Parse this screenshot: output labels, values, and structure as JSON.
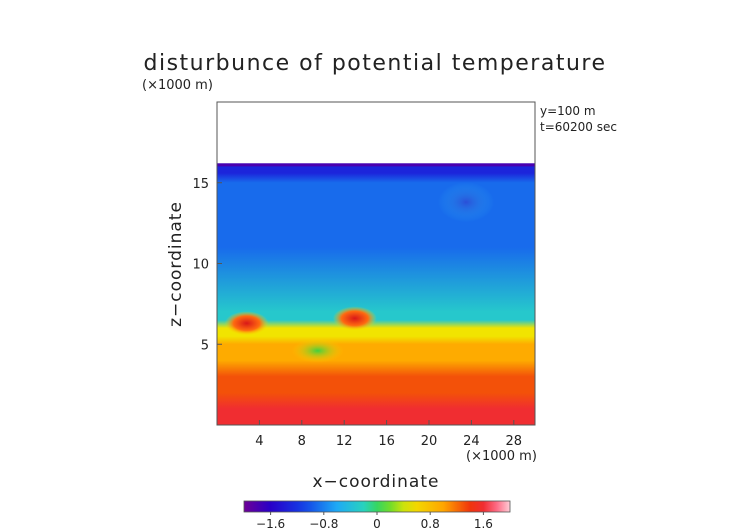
{
  "chart_data": {
    "type": "heatmap",
    "title": "disturbunce of potential temperature",
    "xlabel": "x−coordinate",
    "ylabel": "z−coordinate",
    "x_unit": "(×1000 m)",
    "y_unit": "(×1000 m)",
    "annotations": [
      "y=100  m",
      "t=60200 sec"
    ],
    "xlim": [
      0,
      30
    ],
    "ylim": [
      0,
      20
    ],
    "x_ticks": [
      4,
      8,
      12,
      16,
      20,
      24,
      28
    ],
    "y_ticks": [
      5,
      10,
      15
    ],
    "x_tick_labels": [
      "4",
      "8",
      "12",
      "16",
      "20",
      "24",
      "28"
    ],
    "y_tick_labels": [
      "5",
      "10",
      "15"
    ],
    "colorbar": {
      "min": -2.0,
      "max": 2.0,
      "ticks": [
        -1.6,
        -0.8,
        0,
        0.8,
        1.6
      ],
      "tick_labels": [
        "−1.6",
        "−0.8",
        "0",
        "0.8",
        "1.6"
      ]
    },
    "field_top_z": 16.2,
    "layers": [
      {
        "z_range": [
          0.0,
          1.0
        ],
        "value": 1.6
      },
      {
        "z_range": [
          1.0,
          3.0
        ],
        "value": 1.3
      },
      {
        "z_range": [
          3.0,
          5.0
        ],
        "value": 0.95
      },
      {
        "z_range": [
          5.0,
          6.0
        ],
        "value": 0.5
      },
      {
        "z_range": [
          6.0,
          7.0
        ],
        "value": -0.3
      },
      {
        "z_range": [
          7.0,
          15.0
        ],
        "value": -0.9
      },
      {
        "z_range": [
          15.0,
          16.2
        ],
        "value": -1.3
      }
    ],
    "features": [
      {
        "label": "warm bubble",
        "x": 2.8,
        "z": 6.3,
        "value": 1.6
      },
      {
        "label": "warm bubble",
        "x": 13.0,
        "z": 6.6,
        "value": 1.4
      },
      {
        "label": "cool pocket",
        "x": 9.5,
        "z": 4.6,
        "value": 0.2
      },
      {
        "label": "cold eddy",
        "x": 23.5,
        "z": 13.8,
        "value": -1.3
      }
    ]
  }
}
